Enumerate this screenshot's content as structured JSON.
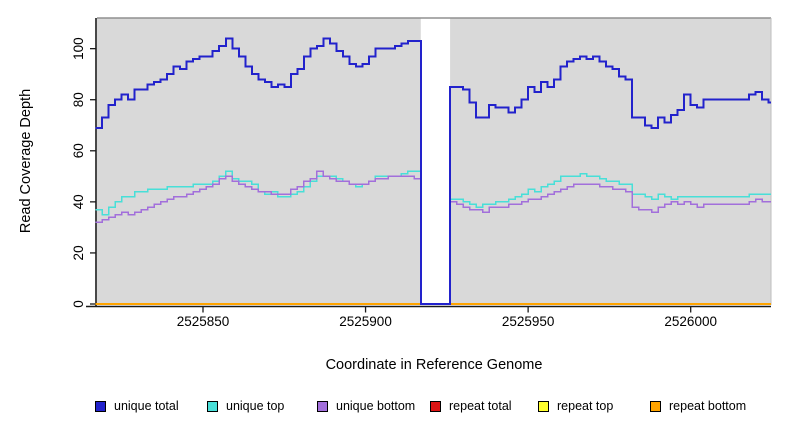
{
  "chart_data": {
    "type": "line",
    "subtype": "step",
    "title": "",
    "xlabel": "Coordinate in Reference Genome",
    "ylabel": "Read Coverage Depth",
    "xlim": [
      2525817.4,
      2526024.7
    ],
    "ylim": [
      0,
      112
    ],
    "x_ticks": [
      2525850,
      2525900,
      2525950,
      2526000
    ],
    "y_ticks": [
      0,
      20,
      40,
      60,
      80,
      100
    ],
    "grid": false,
    "panel_background": "#D9D9D9",
    "panel_top_border_color": "#909090",
    "panel_right_border_color": "#BEBEBE",
    "axis_color": "#1A1A1A",
    "gap_region": {
      "x_start": 2525917,
      "x_end": 2525926,
      "color": "#FFFFFF"
    },
    "draw_order": [
      3,
      4,
      5,
      1,
      2,
      0
    ],
    "x": [
      2525817,
      2525819,
      2525821,
      2525823,
      2525825,
      2525827,
      2525829,
      2525831,
      2525833,
      2525835,
      2525837,
      2525839,
      2525841,
      2525843,
      2525845,
      2525847,
      2525849,
      2525851,
      2525853,
      2525855,
      2525857,
      2525859,
      2525861,
      2525863,
      2525865,
      2525867,
      2525869,
      2525871,
      2525873,
      2525875,
      2525877,
      2525879,
      2525881,
      2525883,
      2525885,
      2525887,
      2525889,
      2525891,
      2525893,
      2525895,
      2525897,
      2525899,
      2525901,
      2525903,
      2525905,
      2525907,
      2525909,
      2525911,
      2525913,
      2525915,
      2525917,
      2525926,
      2525928,
      2525930,
      2525932,
      2525934,
      2525936,
      2525938,
      2525940,
      2525942,
      2525944,
      2525946,
      2525948,
      2525950,
      2525952,
      2525954,
      2525956,
      2525958,
      2525960,
      2525962,
      2525964,
      2525966,
      2525968,
      2525970,
      2525972,
      2525974,
      2525976,
      2525978,
      2525980,
      2525982,
      2525984,
      2525986,
      2525988,
      2525990,
      2525992,
      2525994,
      2525996,
      2525998,
      2526000,
      2526002,
      2526004,
      2526006,
      2526008,
      2526010,
      2526012,
      2526014,
      2526016,
      2526018,
      2526020,
      2526022,
      2526024
    ],
    "series": [
      {
        "name": "unique total",
        "color": "#2222CC",
        "width": 2,
        "values": [
          69,
          73,
          78,
          80,
          82,
          80,
          84,
          84,
          86,
          87,
          88,
          90,
          93,
          92,
          95,
          96,
          97,
          97,
          99,
          101,
          104,
          100,
          97,
          93,
          90,
          88,
          87,
          85,
          86,
          85,
          90,
          92,
          97,
          100,
          101,
          104,
          102,
          99,
          97,
          94,
          93,
          94,
          97,
          100,
          100,
          100,
          101,
          102,
          103,
          103,
          0,
          85,
          85,
          84,
          79,
          73,
          73,
          78,
          77,
          77,
          75,
          77,
          80,
          85,
          83,
          87,
          85,
          88,
          93,
          95,
          96,
          97,
          96,
          97,
          95,
          93,
          92,
          89,
          88,
          73,
          73,
          70,
          69,
          73,
          71,
          74,
          76,
          82,
          78,
          77,
          80,
          80,
          80,
          80,
          80,
          80,
          80,
          82,
          83,
          80,
          79
        ]
      },
      {
        "name": "unique top",
        "color": "#48DFD8",
        "width": 1.5,
        "values": [
          37,
          35,
          38,
          40,
          42,
          42,
          44,
          44,
          45,
          45,
          45,
          46,
          46,
          46,
          46,
          47,
          47,
          47,
          48,
          50,
          52,
          49,
          48,
          48,
          47,
          44,
          43,
          44,
          42,
          42,
          43,
          44,
          46,
          48,
          50,
          50,
          50,
          49,
          48,
          47,
          46,
          47,
          48,
          50,
          50,
          50,
          50,
          51,
          52,
          52,
          0,
          41,
          41,
          40,
          39,
          38,
          39,
          39,
          40,
          40,
          41,
          42,
          43,
          45,
          44,
          46,
          47,
          48,
          50,
          50,
          50,
          51,
          50,
          50,
          49,
          48,
          48,
          47,
          47,
          43,
          43,
          42,
          41,
          43,
          42,
          41,
          42,
          42,
          42,
          42,
          42,
          42,
          42,
          42,
          42,
          42,
          42,
          43,
          43,
          43,
          43
        ]
      },
      {
        "name": "unique bottom",
        "color": "#A26FDB",
        "width": 1.5,
        "values": [
          32,
          33,
          34,
          35,
          36,
          35,
          36,
          37,
          38,
          39,
          40,
          41,
          42,
          42,
          43,
          44,
          45,
          46,
          47,
          49,
          50,
          48,
          47,
          46,
          45,
          44,
          44,
          43,
          43,
          43,
          45,
          46,
          48,
          49,
          52,
          50,
          49,
          48,
          48,
          47,
          47,
          47,
          48,
          49,
          49,
          50,
          50,
          50,
          50,
          49,
          0,
          40,
          39,
          38,
          37,
          37,
          36,
          38,
          38,
          38,
          39,
          39,
          40,
          41,
          41,
          42,
          43,
          44,
          45,
          46,
          47,
          47,
          47,
          47,
          46,
          46,
          45,
          45,
          44,
          38,
          37,
          37,
          36,
          38,
          39,
          40,
          39,
          40,
          39,
          38,
          39,
          39,
          39,
          39,
          39,
          39,
          39,
          40,
          41,
          40,
          40
        ]
      },
      {
        "name": "repeat total",
        "color": "#DC1414",
        "width": 1.2,
        "constant": 0
      },
      {
        "name": "repeat top",
        "color": "#FFFF2E",
        "width": 1.2,
        "constant": 0
      },
      {
        "name": "repeat bottom",
        "color": "#FFA400",
        "width": 2,
        "constant": 0
      }
    ],
    "legend": {
      "position": "bottom",
      "entries": [
        {
          "label": "unique total",
          "color": "#2222CC"
        },
        {
          "label": "unique top",
          "color": "#48DFD8"
        },
        {
          "label": "unique bottom",
          "color": "#A26FDB"
        },
        {
          "label": "repeat total",
          "color": "#DC1414"
        },
        {
          "label": "repeat top",
          "color": "#FFFF2E"
        },
        {
          "label": "repeat bottom",
          "color": "#FFA400"
        }
      ]
    }
  }
}
